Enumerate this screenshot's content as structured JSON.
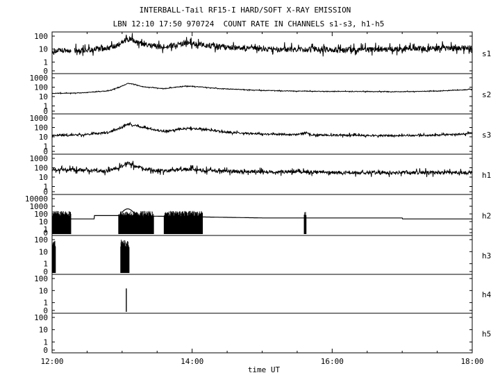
{
  "header": {
    "title": "INTERBALL-Tail RF15-I HARD/SOFT X-RAY EMISSION",
    "subtitle": "LBN 12:10 17:50 970724  COUNT RATE IN CHANNELS s1-s3, h1-h5"
  },
  "chart_data": {
    "type": "line",
    "xlabel": "time UT",
    "x_range": [
      "12:00",
      "18:00"
    ],
    "x_ticks": [
      "12:00",
      "14:00",
      "16:00",
      "18:00"
    ],
    "y_scale": "log",
    "panels": [
      {
        "name": "s1",
        "y_ticks": [
          "100",
          "10",
          "1",
          "0"
        ],
        "series": [
          [
            12.0,
            7
          ],
          [
            12.3,
            8
          ],
          [
            12.6,
            9
          ],
          [
            12.9,
            15
          ],
          [
            13.05,
            50
          ],
          [
            13.12,
            55
          ],
          [
            13.3,
            22
          ],
          [
            13.6,
            14
          ],
          [
            13.9,
            28
          ],
          [
            14.2,
            20
          ],
          [
            14.6,
            13
          ],
          [
            15.0,
            10
          ],
          [
            15.5,
            9
          ],
          [
            16.0,
            9
          ],
          [
            16.5,
            9
          ],
          [
            17.0,
            10
          ],
          [
            17.5,
            11
          ],
          [
            18.0,
            13
          ]
        ],
        "noise": 0.35,
        "gaps": [
          [
            12.27,
            12.32
          ]
        ]
      },
      {
        "name": "s2",
        "y_ticks": [
          "1000",
          "100",
          "10",
          "1",
          "0"
        ],
        "series": [
          [
            12.0,
            22
          ],
          [
            12.4,
            24
          ],
          [
            12.8,
            40
          ],
          [
            12.95,
            90
          ],
          [
            13.08,
            250
          ],
          [
            13.15,
            220
          ],
          [
            13.3,
            110
          ],
          [
            13.6,
            70
          ],
          [
            13.9,
            130
          ],
          [
            14.1,
            110
          ],
          [
            14.4,
            70
          ],
          [
            15.0,
            45
          ],
          [
            15.5,
            38
          ],
          [
            16.0,
            35
          ],
          [
            16.5,
            34
          ],
          [
            17.0,
            33
          ],
          [
            17.5,
            38
          ],
          [
            17.85,
            50
          ],
          [
            18.0,
            60
          ]
        ],
        "noise": 0.05,
        "gaps": []
      },
      {
        "name": "s3",
        "y_ticks": [
          "1000",
          "100",
          "10",
          "1",
          "0"
        ],
        "series": [
          [
            12.0,
            15
          ],
          [
            12.4,
            16
          ],
          [
            12.8,
            28
          ],
          [
            12.95,
            70
          ],
          [
            13.08,
            220
          ],
          [
            13.15,
            180
          ],
          [
            13.4,
            70
          ],
          [
            13.6,
            35
          ],
          [
            13.9,
            80
          ],
          [
            14.1,
            70
          ],
          [
            14.5,
            32
          ],
          [
            15.0,
            20
          ],
          [
            15.5,
            17
          ],
          [
            15.62,
            30
          ],
          [
            15.7,
            16
          ],
          [
            16.0,
            15
          ],
          [
            16.5,
            14
          ],
          [
            17.0,
            14
          ],
          [
            17.5,
            15
          ],
          [
            17.9,
            20
          ],
          [
            18.0,
            26
          ]
        ],
        "noise": 0.15,
        "gaps": []
      },
      {
        "name": "h1",
        "y_ticks": [
          "1000",
          "100",
          "10",
          "1",
          "0"
        ],
        "series": [
          [
            12.0,
            60
          ],
          [
            12.4,
            55
          ],
          [
            12.8,
            45
          ],
          [
            12.95,
            110
          ],
          [
            13.08,
            300
          ],
          [
            13.18,
            150
          ],
          [
            13.4,
            60
          ],
          [
            13.6,
            45
          ],
          [
            13.9,
            70
          ],
          [
            14.2,
            50
          ],
          [
            14.6,
            40
          ],
          [
            15.0,
            38
          ],
          [
            15.5,
            35
          ],
          [
            16.0,
            32
          ],
          [
            16.5,
            30
          ],
          [
            17.0,
            30
          ],
          [
            17.5,
            30
          ],
          [
            18.0,
            30
          ]
        ],
        "noise": 0.3,
        "gaps": []
      },
      {
        "name": "h2",
        "y_ticks": [
          "10000",
          "1000",
          "100",
          "10",
          "1",
          "0"
        ],
        "series": [
          [
            12.0,
            22
          ],
          [
            12.6,
            22
          ],
          [
            12.6,
            60
          ],
          [
            12.95,
            60
          ],
          [
            15.0,
            30
          ],
          [
            17.0,
            30
          ],
          [
            17.0,
            22
          ],
          [
            18.0,
            22
          ]
        ],
        "noise": 0,
        "gaps": []
      },
      {
        "name": "h3",
        "y_ticks": [
          "100",
          "10",
          "1",
          "0"
        ],
        "series": [],
        "noise": 0,
        "gaps": []
      },
      {
        "name": "h4",
        "y_ticks": [
          "100",
          "10",
          "1",
          "0"
        ],
        "series": [],
        "noise": 0,
        "gaps": []
      },
      {
        "name": "h5",
        "y_ticks": [
          "100",
          "10",
          "1",
          "0"
        ],
        "series": [],
        "noise": 0,
        "gaps": []
      }
    ]
  }
}
